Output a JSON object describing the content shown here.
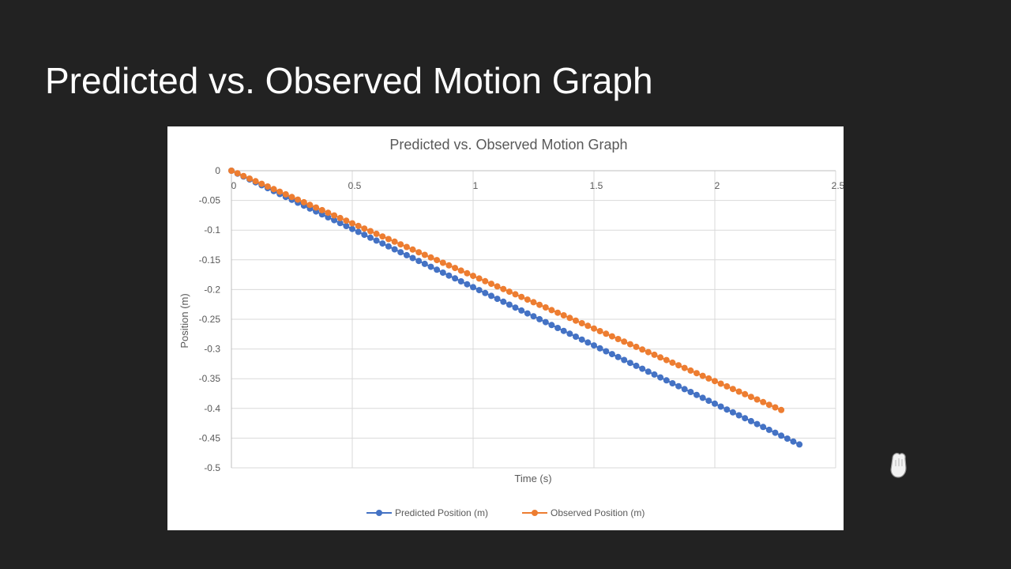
{
  "slide": {
    "title": "Predicted vs. Observed Motion Graph"
  },
  "chart_data": {
    "type": "scatter",
    "title": "Predicted vs. Observed Motion Graph",
    "xlabel": "Time (s)",
    "ylabel": "Position (m)",
    "xlim": [
      0,
      2.5
    ],
    "ylim": [
      -0.5,
      0
    ],
    "xticks": [
      "0",
      "0.5",
      "1",
      "1.5",
      "2",
      "2.5"
    ],
    "yticks": [
      "0",
      "-0.05",
      "-0.1",
      "-0.15",
      "-0.2",
      "-0.25",
      "-0.3",
      "-0.35",
      "-0.4",
      "-0.45",
      "-0.5"
    ],
    "grid": true,
    "legend_position": "bottom",
    "series": [
      {
        "name": "Predicted Position (m)",
        "color": "#4472C4",
        "line": {
          "x_start": 0,
          "x_end": 2.35,
          "slope": -0.196,
          "intercept": 0.0,
          "step": 0.025
        }
      },
      {
        "name": "Observed Position (m)",
        "color": "#ED7D31",
        "line": {
          "x_start": 0,
          "x_end": 2.275,
          "slope": -0.177,
          "intercept": 0.0,
          "step": 0.025
        }
      }
    ]
  },
  "colors": {
    "background": "#222222",
    "panel": "#ffffff",
    "grid": "#d9d9d9",
    "text": "#595959"
  }
}
